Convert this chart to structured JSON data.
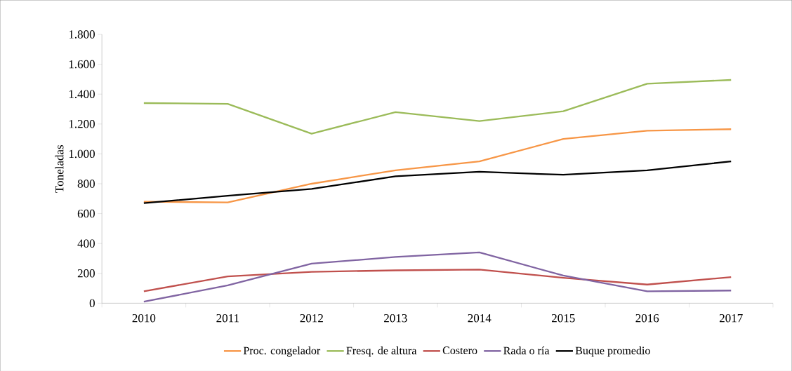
{
  "chart_data": {
    "type": "line",
    "ylabel": "Toneladas",
    "categories": [
      "2010",
      "2011",
      "2012",
      "2013",
      "2014",
      "2015",
      "2016",
      "2017"
    ],
    "series": [
      {
        "name": "Proc. congelador",
        "color": "#f79646",
        "values": [
          680,
          675,
          800,
          890,
          950,
          1100,
          1155,
          1165
        ]
      },
      {
        "name": "Fresq. de altura",
        "color": "#9bbb59",
        "values": [
          1340,
          1335,
          1135,
          1280,
          1220,
          1285,
          1470,
          1495
        ]
      },
      {
        "name": "Costero",
        "color": "#c0504d",
        "values": [
          80,
          180,
          210,
          220,
          225,
          170,
          125,
          175
        ]
      },
      {
        "name": "Rada o ría",
        "color": "#8064a2",
        "values": [
          10,
          120,
          265,
          310,
          340,
          185,
          80,
          85
        ]
      },
      {
        "name": "Buque promedio",
        "color": "#000000",
        "values": [
          670,
          720,
          765,
          850,
          880,
          860,
          890,
          950
        ]
      }
    ],
    "ylim": [
      0,
      1800
    ],
    "yticks": [
      0,
      200,
      400,
      600,
      800,
      {
        "value": 1000,
        "label": "1.000"
      },
      {
        "value": 1200,
        "label": "1.200"
      },
      {
        "value": 1400,
        "label": "1.400"
      },
      {
        "value": 1600,
        "label": "1.600"
      },
      {
        "value": 1800,
        "label": "1.800"
      }
    ],
    "grid": false,
    "legend": "bottom",
    "marker": "none",
    "line_style": "solid"
  }
}
